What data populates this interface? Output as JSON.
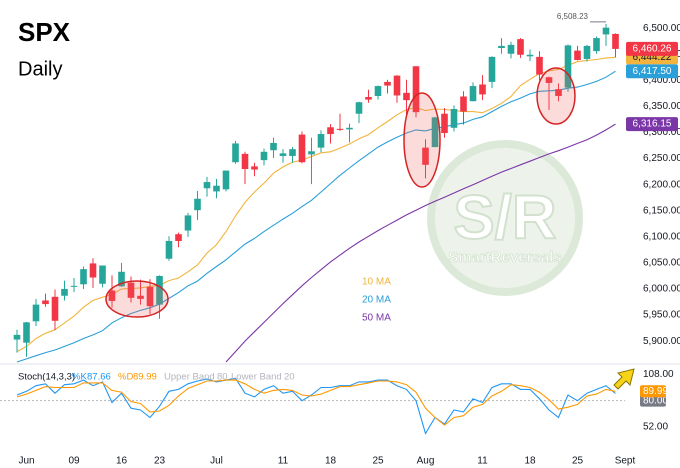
{
  "chart_data": [
    {
      "type": "candlestick",
      "title": "SPX",
      "subtitle": "Daily",
      "categories": [
        null,
        "Jun",
        null,
        null,
        null,
        null,
        "09",
        null,
        null,
        null,
        null,
        "16",
        null,
        null,
        null,
        "23",
        null,
        null,
        null,
        null,
        null,
        "Jul",
        null,
        null,
        null,
        null,
        null,
        null,
        "11",
        null,
        null,
        null,
        null,
        "18",
        null,
        null,
        null,
        null,
        "25",
        null,
        null,
        null,
        null,
        "Aug",
        null,
        null,
        null,
        null,
        null,
        "11",
        null,
        null,
        null,
        null,
        "18",
        null,
        null,
        null,
        null,
        "25",
        null,
        null,
        null,
        null,
        "Sept"
      ],
      "ohlc": [
        [
          5903,
          5922,
          5878,
          5912
        ],
        [
          5897,
          5937,
          5870,
          5936
        ],
        [
          5938,
          5981,
          5929,
          5970
        ],
        [
          5978,
          5991,
          5966,
          5971
        ],
        [
          5985,
          5999,
          5921,
          5939
        ],
        [
          5987,
          6016,
          5978,
          6000
        ],
        [
          6005,
          6021,
          5994,
          6006
        ],
        [
          6009,
          6043,
          6000,
          6038
        ],
        [
          6049,
          6059,
          6002,
          6022
        ],
        [
          6010,
          6045,
          6003,
          6045
        ],
        [
          5997,
          6026,
          5964,
          5977
        ],
        [
          6005,
          6050,
          6004,
          6033
        ],
        [
          6012,
          6024,
          5974,
          5983
        ],
        [
          5987,
          6018,
          5970,
          5981
        ],
        [
          6004,
          6019,
          5952,
          5967
        ],
        [
          5970,
          6026,
          5943,
          6025
        ],
        [
          6058,
          6101,
          6054,
          6092
        ],
        [
          6105,
          6108,
          6080,
          6092
        ],
        [
          6112,
          6146,
          6100,
          6141
        ],
        [
          6151,
          6188,
          6132,
          6173
        ],
        [
          6193,
          6215,
          6177,
          6205
        ],
        [
          6187,
          6211,
          6174,
          6198
        ],
        [
          6191,
          6227,
          6187,
          6227
        ],
        [
          6243,
          6284,
          6240,
          6279
        ],
        [
          6259,
          6263,
          6201,
          6230
        ],
        [
          6235,
          6242,
          6216,
          6229
        ],
        [
          6247,
          6269,
          6237,
          6263
        ],
        [
          6266,
          6290,
          6251,
          6280
        ],
        [
          6255,
          6268,
          6242,
          6260
        ],
        [
          6255,
          6272,
          6242,
          6268
        ],
        [
          6296,
          6302,
          6241,
          6243
        ],
        [
          6258,
          6290,
          6201,
          6264
        ],
        [
          6271,
          6304,
          6262,
          6297
        ],
        [
          6310,
          6316,
          6279,
          6297
        ],
        [
          6307,
          6336,
          6303,
          6305
        ],
        [
          6306,
          6317,
          6281,
          6309
        ],
        [
          6336,
          6359,
          6318,
          6358
        ],
        [
          6368,
          6382,
          6357,
          6363
        ],
        [
          6370,
          6390,
          6363,
          6389
        ],
        [
          6397,
          6401,
          6375,
          6390
        ],
        [
          6409,
          6410,
          6357,
          6371
        ],
        [
          6376,
          6401,
          6332,
          6362
        ],
        [
          6427,
          6427,
          6329,
          6339
        ],
        [
          6271,
          6287,
          6212,
          6238
        ],
        [
          6272,
          6330,
          6272,
          6329
        ],
        [
          6336,
          6347,
          6290,
          6299
        ],
        [
          6309,
          6352,
          6302,
          6345
        ],
        [
          6369,
          6379,
          6315,
          6340
        ],
        [
          6360,
          6396,
          6360,
          6389
        ],
        [
          6392,
          6410,
          6362,
          6373
        ],
        [
          6397,
          6446,
          6385,
          6445
        ],
        [
          6462,
          6481,
          6451,
          6466
        ],
        [
          6451,
          6474,
          6442,
          6468
        ],
        [
          6479,
          6481,
          6443,
          6449
        ],
        [
          6446,
          6459,
          6437,
          6449
        ],
        [
          6445,
          6456,
          6400,
          6411
        ],
        [
          6406,
          6407,
          6343,
          6395
        ],
        [
          6383,
          6394,
          6360,
          6370
        ],
        [
          6386,
          6469,
          6378,
          6467
        ],
        [
          6457,
          6466,
          6438,
          6439
        ],
        [
          6441,
          6468,
          6436,
          6466
        ],
        [
          6456,
          6484,
          6451,
          6481
        ],
        [
          6488,
          6508.23,
          6466,
          6501
        ],
        [
          6489,
          6490,
          6444,
          6460.26
        ],
        null
      ],
      "value_labels": {
        "63": "6,460.26"
      },
      "high_labels": {
        "62": "6,508.23"
      },
      "up_color": "#26a69a",
      "down_color": "#f23645",
      "series": [
        {
          "name": "10 MA",
          "color": "#f2b43c",
          "values": [
            5880,
            5890,
            5905,
            5915,
            5922,
            5935,
            5948,
            5965,
            5978,
            5984,
            5990,
            6000,
            6001,
            6002,
            6005,
            6007,
            6016,
            6021,
            6033,
            6046,
            6069,
            6085,
            6110,
            6140,
            6166,
            6186,
            6203,
            6222,
            6234,
            6243,
            6247,
            6254,
            6261,
            6263,
            6270,
            6278,
            6288,
            6296,
            6309,
            6321,
            6334,
            6344,
            6348,
            6342,
            6345,
            6344,
            6342,
            6340,
            6340,
            6338,
            6346,
            6356,
            6369,
            6390,
            6402,
            6413,
            6418,
            6421,
            6429,
            6436,
            6438,
            6440,
            6443,
            6444.22,
            null
          ],
          "value_labels": {
            "63": "6,444.22"
          }
        },
        {
          "name": "20 MA",
          "color": "#2a9fd8",
          "values": [
            5860,
            5866,
            5872,
            5878,
            5883,
            5890,
            5897,
            5905,
            5912,
            5920,
            5935,
            5945,
            5953,
            5959,
            5964,
            5971,
            5982,
            5993,
            6006,
            6015,
            6030,
            6043,
            6056,
            6071,
            6086,
            6097,
            6110,
            6122,
            6134,
            6145,
            6158,
            6170,
            6186,
            6202,
            6218,
            6232,
            6246,
            6259,
            6272,
            6282,
            6291,
            6299,
            6305,
            6303,
            6308,
            6311,
            6315,
            6318,
            6325,
            6330,
            6340,
            6350,
            6359,
            6366,
            6374,
            6379,
            6380,
            6381,
            6385,
            6387,
            6392,
            6398,
            6406,
            6417.5,
            null
          ],
          "value_labels": {
            "63": "6,417.50"
          }
        },
        {
          "name": "50 MA",
          "color": "#7b36a8",
          "values": [
            null,
            null,
            null,
            null,
            null,
            null,
            null,
            null,
            null,
            null,
            null,
            null,
            null,
            null,
            null,
            null,
            null,
            null,
            null,
            null,
            null,
            null,
            5860,
            5880,
            5900,
            5918,
            5936,
            5954,
            5972,
            5989,
            6006,
            6022,
            6037,
            6052,
            6065,
            6078,
            6090,
            6101,
            6112,
            6122,
            6132,
            6142,
            6151,
            6160,
            6168,
            6176,
            6184,
            6192,
            6200,
            6208,
            6216,
            6224,
            6231,
            6238,
            6245,
            6252,
            6259,
            6265,
            6272,
            6279,
            6286,
            6295,
            6305,
            6316.15,
            null
          ],
          "value_labels": {
            "63": "6,316.15"
          }
        }
      ],
      "ylim": [
        5860,
        6554
      ],
      "yticks": [
        {
          "value": 5900,
          "label": "5,900.00"
        },
        {
          "value": 5950,
          "label": "5,950.00"
        },
        {
          "value": 6000,
          "label": "6,000.00"
        },
        {
          "value": 6050,
          "label": "6,050.00"
        },
        {
          "value": 6100,
          "label": "6,100.00"
        },
        {
          "value": 6150,
          "label": "6,150.00"
        },
        {
          "value": 6200,
          "label": "6,200.00"
        },
        {
          "value": 6250,
          "label": "6,250.00"
        },
        {
          "value": 6300,
          "label": "6,300.00"
        },
        {
          "value": 6350,
          "label": "6,350.00"
        },
        {
          "value": 6400,
          "label": "6,400.00"
        },
        {
          "value": 6450,
          "label": "6,450.00"
        },
        {
          "value": 6500,
          "label": "6,500.00"
        }
      ],
      "watermark": {
        "logo": "S/R",
        "name": "SmartReversals"
      }
    },
    {
      "type": "line",
      "title": "Stoch(14,3,3)",
      "series": [
        {
          "name": "%K",
          "color": "#2196f3",
          "values": [
            86,
            90,
            96,
            98,
            88,
            97,
            98,
            102,
            96,
            100,
            78,
            88,
            72,
            70,
            62,
            74,
            90,
            92,
            98,
            101,
            103,
            100,
            102,
            104,
            88,
            84,
            92,
            96,
            88,
            90,
            80,
            86,
            94,
            94,
            96,
            96,
            100,
            100,
            102,
            102,
            96,
            92,
            80,
            45,
            62,
            55,
            70,
            68,
            82,
            78,
            94,
            98,
            98,
            92,
            92,
            82,
            70,
            62,
            86,
            80,
            88,
            92,
            96,
            87.66,
            null
          ]
        },
        {
          "name": "%D",
          "color": "#ff9800",
          "values": [
            84,
            87,
            91,
            95,
            94,
            94,
            94,
            99,
            99,
            99,
            91,
            89,
            79,
            77,
            68,
            69,
            75,
            85,
            93,
            97,
            101,
            101,
            102,
            102,
            98,
            92,
            88,
            91,
            92,
            91,
            86,
            85,
            87,
            91,
            95,
            95,
            97,
            99,
            101,
            101,
            100,
            97,
            89,
            72,
            62,
            54,
            62,
            64,
            73,
            76,
            85,
            90,
            97,
            96,
            94,
            89,
            81,
            71,
            73,
            76,
            85,
            87,
            92,
            89.99,
            null
          ]
        }
      ],
      "upper_band": {
        "label": "Upper Band",
        "value": 80
      },
      "lower_band": {
        "label": "Lower Band",
        "value": 20
      },
      "band_color": "#b2b5be",
      "ylim": [
        22,
        117
      ],
      "yticks": [
        {
          "value": 108,
          "label": "108.00"
        },
        {
          "value": 80,
          "label": "80.00"
        },
        {
          "value": 52,
          "label": "52.00"
        }
      ]
    }
  ]
}
